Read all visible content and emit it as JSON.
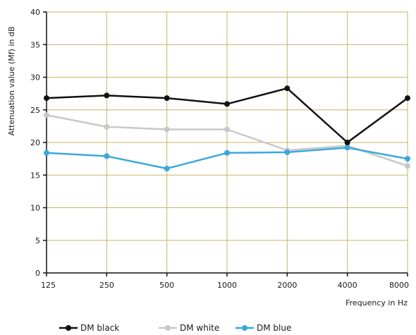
{
  "chart_data": {
    "type": "line",
    "title": "",
    "xlabel": "Frequency in Hz",
    "ylabel": "Attenuation value (Mf) in dB",
    "categories": [
      "125",
      "250",
      "500",
      "1000",
      "2000",
      "4000",
      "8000"
    ],
    "ylim": [
      0,
      40
    ],
    "yticks": [
      0,
      5,
      10,
      15,
      20,
      25,
      30,
      35,
      40
    ],
    "grid": true,
    "grid_color": "#c9b36a",
    "legend_position": "bottom",
    "series": [
      {
        "name": "DM black",
        "color": "#111111",
        "values": [
          26.8,
          27.2,
          26.8,
          25.9,
          28.3,
          20.0,
          26.8
        ]
      },
      {
        "name": "DM white",
        "color": "#c8c8c8",
        "values": [
          24.2,
          22.4,
          22.0,
          22.0,
          18.8,
          19.5,
          16.4
        ]
      },
      {
        "name": "DM blue",
        "color": "#3aa8dc",
        "values": [
          18.4,
          17.9,
          16.0,
          18.4,
          18.5,
          19.2,
          17.5
        ]
      }
    ]
  }
}
